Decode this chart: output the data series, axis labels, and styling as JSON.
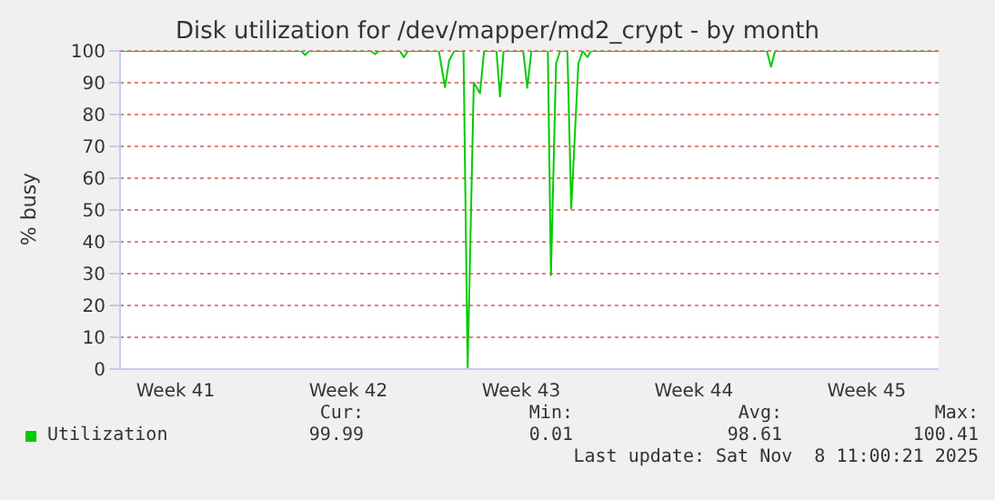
{
  "chart_data": {
    "type": "line",
    "title": "Disk utilization for /dev/mapper/md2_crypt - by month",
    "ylabel": "% busy",
    "x": [
      "2025-10-07T06:00",
      "2025-10-14T14:00",
      "2025-10-14T18:00",
      "2025-10-14T22:00",
      "2025-10-17T10:00",
      "2025-10-17T14:00",
      "2025-10-17T18:00",
      "2025-10-18T14:00",
      "2025-10-18T18:00",
      "2025-10-18T22:00",
      "2025-10-20T04:00",
      "2025-10-20T10:00",
      "2025-10-20T14:00",
      "2025-10-20T19:00",
      "2025-10-21T04:00",
      "2025-10-21T08:00",
      "2025-10-21T14:00",
      "2025-10-21T20:00",
      "2025-10-22T00:00",
      "2025-10-22T12:00",
      "2025-10-22T15:30",
      "2025-10-22T19:00",
      "2025-10-23T14:00",
      "2025-10-23T18:00",
      "2025-10-23T22:00",
      "2025-10-24T14:00",
      "2025-10-24T17:00",
      "2025-10-24T22:00",
      "2025-10-25T02:00",
      "2025-10-25T09:00",
      "2025-10-25T12:45",
      "2025-10-25T19:40",
      "2025-10-26T00:00",
      "2025-10-26T04:30",
      "2025-10-26T08:00",
      "2025-11-02T11:00",
      "2025-11-02T15:00",
      "2025-11-02T19:00",
      "2025-11-09T10:00"
    ],
    "series": [
      {
        "name": "Utilization",
        "color": "#00cc00",
        "values": [
          100,
          100,
          98.7,
          100,
          100,
          99,
          100,
          100,
          98,
          100,
          100,
          88.6,
          97,
          100,
          100,
          0,
          90,
          86.7,
          100,
          100,
          85.7,
          100,
          100,
          88.4,
          100,
          100,
          29.5,
          96,
          100,
          100,
          50.4,
          96,
          100,
          98,
          100,
          100,
          95,
          100,
          100
        ]
      }
    ],
    "xlim": [
      "2025-10-07T06:00",
      "2025-11-09T10:00"
    ],
    "xticks": [
      {
        "value": "2025-10-09T12:00",
        "label": "Week 41"
      },
      {
        "value": "2025-10-16T12:00",
        "label": "Week 42"
      },
      {
        "value": "2025-10-23T12:00",
        "label": "Week 43"
      },
      {
        "value": "2025-10-30T12:00",
        "label": "Week 44"
      },
      {
        "value": "2025-11-06T12:00",
        "label": "Week 45"
      }
    ],
    "ylim": [
      0,
      100
    ],
    "yticks": [
      0,
      10,
      20,
      30,
      40,
      50,
      60,
      70,
      80,
      90,
      100
    ],
    "grid": "y",
    "legend": "bottom",
    "marker": "none",
    "line_style": "solid",
    "annotations": [
      "Cur:",
      "99.99",
      "Min:",
      "0.01",
      "Avg:",
      "98.61",
      "Max:",
      "100.41",
      "Last update: Sat Nov  8 11:00:21 2025"
    ]
  }
}
